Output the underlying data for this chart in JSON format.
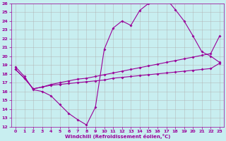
{
  "xlabel": "Windchill (Refroidissement éolien,°C)",
  "xlim": [
    -0.5,
    23.5
  ],
  "ylim": [
    12,
    26
  ],
  "xticks": [
    0,
    1,
    2,
    3,
    4,
    5,
    6,
    7,
    8,
    9,
    10,
    11,
    12,
    13,
    14,
    15,
    16,
    17,
    18,
    19,
    20,
    21,
    22,
    23
  ],
  "yticks": [
    12,
    13,
    14,
    15,
    16,
    17,
    18,
    19,
    20,
    21,
    22,
    23,
    24,
    25,
    26
  ],
  "bg_color": "#c8eef0",
  "grid_color": "#b0b0b0",
  "line_color": "#990099",
  "s1_x": [
    0,
    1,
    2,
    3,
    4,
    5,
    6,
    7,
    8,
    9,
    10,
    11,
    12,
    13,
    14,
    15,
    16,
    17,
    18,
    19,
    20,
    21,
    22,
    23
  ],
  "s1_y": [
    18.8,
    17.7,
    16.2,
    16.0,
    15.5,
    14.5,
    13.5,
    12.8,
    12.2,
    14.2,
    20.8,
    23.2,
    24.0,
    23.5,
    25.2,
    26.0,
    26.2,
    26.5,
    25.3,
    24.0,
    22.3,
    20.5,
    20.0,
    19.3
  ],
  "s2_x": [
    0,
    1,
    2,
    3,
    4,
    5,
    6,
    7,
    8,
    9,
    10,
    11,
    12,
    13,
    14,
    15,
    16,
    17,
    18,
    19,
    20,
    21,
    22,
    23
  ],
  "s2_y": [
    18.5,
    17.5,
    16.3,
    16.5,
    16.8,
    17.0,
    17.2,
    17.4,
    17.5,
    17.7,
    17.9,
    18.1,
    18.3,
    18.5,
    18.7,
    18.9,
    19.1,
    19.3,
    19.5,
    19.7,
    19.9,
    20.1,
    20.3,
    22.3
  ],
  "s3_x": [
    0,
    1,
    2,
    3,
    4,
    5,
    6,
    7,
    8,
    9,
    10,
    11,
    12,
    13,
    14,
    15,
    16,
    17,
    18,
    19,
    20,
    21,
    22,
    23
  ],
  "s3_y": [
    18.5,
    17.5,
    16.3,
    16.5,
    16.7,
    16.8,
    16.9,
    17.0,
    17.1,
    17.2,
    17.3,
    17.5,
    17.6,
    17.7,
    17.8,
    17.9,
    18.0,
    18.1,
    18.2,
    18.3,
    18.4,
    18.5,
    18.6,
    19.2
  ]
}
